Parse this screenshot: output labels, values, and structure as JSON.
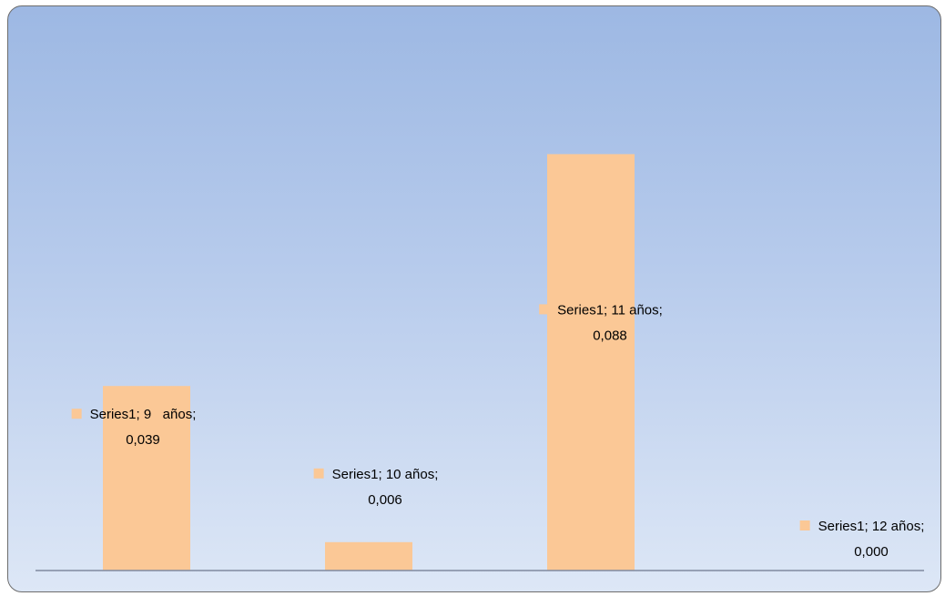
{
  "chart_data": {
    "type": "bar",
    "categories": [
      "9   años",
      "10 años",
      "11 años",
      "12 años"
    ],
    "series": [
      {
        "name": "Series1",
        "values": [
          0.039,
          0.006,
          0.088,
          0.0
        ]
      }
    ],
    "data_labels": [
      {
        "line1": "Series1; 9   años;",
        "line2": "0,039"
      },
      {
        "line1": "Series1; 10 años;",
        "line2": "0,006"
      },
      {
        "line1": "Series1; 11 años;",
        "line2": "0,088"
      },
      {
        "line1": "Series1; 12 años;",
        "line2": "0,000"
      }
    ],
    "title": "",
    "xlabel": "",
    "ylabel": "",
    "ylim": [
      0,
      0.1
    ],
    "grid": false,
    "legend": "none",
    "colors": {
      "bar": "#fbc896",
      "label_marker": "#fbc896",
      "axis": "#7f8aa0",
      "frame_border": "#6d6d6d"
    }
  }
}
